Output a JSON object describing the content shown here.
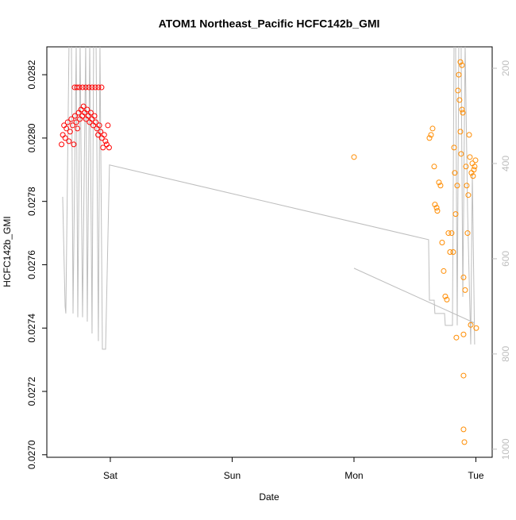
{
  "chart_data": {
    "type": "scatter",
    "title": "ATOM1 Northeast_Pacific HCFC142b_GMI",
    "xlabel": "Date",
    "ylabel": "HCFC142b_GMI",
    "xlim": [
      -0.521,
      3.134
    ],
    "xticks": [
      {
        "value": 0,
        "label": "Sat"
      },
      {
        "value": 1,
        "label": "Sun"
      },
      {
        "value": 2,
        "label": "Mon"
      },
      {
        "value": 3,
        "label": "Tue"
      }
    ],
    "ylim": [
      0.026992,
      0.028288
    ],
    "yticks": [
      {
        "value": 0.027,
        "label": "0.0270"
      },
      {
        "value": 0.0272,
        "label": "0.0272"
      },
      {
        "value": 0.0274,
        "label": "0.0274"
      },
      {
        "value": 0.0276,
        "label": "0.0276"
      },
      {
        "value": 0.0278,
        "label": "0.0278"
      },
      {
        "value": 0.028,
        "label": "0.0280"
      },
      {
        "value": 0.0282,
        "label": "0.0282"
      }
    ],
    "y2lim": [
      1017,
      155
    ],
    "y2ticks": [
      200,
      400,
      600,
      800,
      1000
    ],
    "series": [
      {
        "style": "line",
        "axis": "y2",
        "color": "#bebebe",
        "x": [
          -0.391,
          -0.371,
          -0.365,
          -0.339,
          -0.319,
          -0.306,
          -0.28,
          -0.267,
          -0.248,
          -0.228,
          -0.202,
          -0.189,
          -0.169,
          -0.15,
          -0.137,
          -0.117,
          -0.098,
          -0.085,
          -0.065,
          -0.039,
          -0.007,
          2.612,
          2.619,
          2.658,
          2.664,
          2.743,
          2.749,
          2.808,
          2.821,
          2.834,
          2.847,
          2.86,
          2.879,
          2.893,
          2.912,
          2.932,
          2.945,
          2.958,
          2.971,
          2.99,
          null,
          2.0,
          2.99
        ],
        "values": [
          470,
          700,
          715,
          150,
          150,
          715,
          150,
          723,
          150,
          723,
          150,
          732,
          150,
          757,
          150,
          150,
          773,
          150,
          790,
          790,
          403,
          560,
          687,
          687,
          715,
          715,
          740,
          740,
          150,
          150,
          740,
          150,
          150,
          680,
          150,
          500,
          640,
          780,
          420,
          780,
          null,
          620,
          735
        ]
      },
      {
        "style": "points",
        "color": "#ff0000",
        "x": [
          -0.4,
          -0.39,
          -0.38,
          -0.37,
          -0.36,
          -0.35,
          -0.34,
          -0.33,
          -0.32,
          -0.31,
          -0.3,
          -0.29,
          -0.28,
          -0.27,
          -0.26,
          -0.25,
          -0.24,
          -0.23,
          -0.22,
          -0.21,
          -0.2,
          -0.19,
          -0.18,
          -0.17,
          -0.16,
          -0.15,
          -0.14,
          -0.13,
          -0.12,
          -0.11,
          -0.1,
          -0.09,
          -0.08,
          -0.07,
          -0.06,
          -0.05,
          -0.04,
          -0.03,
          -0.02,
          -0.01,
          -0.293,
          -0.274,
          -0.254,
          -0.228,
          -0.202,
          -0.176,
          -0.15,
          -0.124,
          -0.098,
          -0.072
        ],
        "values": [
          0.02798,
          0.02801,
          0.02804,
          0.028,
          0.02803,
          0.02805,
          0.02799,
          0.02802,
          0.02806,
          0.02804,
          0.02798,
          0.02807,
          0.02805,
          0.02803,
          0.02808,
          0.02806,
          0.02809,
          0.02807,
          0.0281,
          0.02808,
          0.02806,
          0.02809,
          0.02807,
          0.02805,
          0.02808,
          0.02806,
          0.02804,
          0.02807,
          0.02805,
          0.02803,
          0.02801,
          0.02804,
          0.02802,
          0.028,
          0.02797,
          0.02801,
          0.02799,
          0.02798,
          0.02804,
          0.02797,
          0.02816,
          0.02816,
          0.02816,
          0.02816,
          0.02816,
          0.02816,
          0.02816,
          0.02816,
          0.02816,
          0.02816
        ]
      },
      {
        "style": "points",
        "color": "#ff8c00",
        "x": [
          2.0,
          2.619,
          2.632,
          2.645,
          2.658,
          2.664,
          2.678,
          2.684,
          2.697,
          2.71,
          2.723,
          2.736,
          2.749,
          2.762,
          2.775,
          2.788,
          2.801,
          2.814,
          2.821,
          2.827,
          2.834,
          2.84,
          2.847,
          2.853,
          2.86,
          2.866,
          2.873,
          2.873,
          2.879,
          2.886,
          2.886,
          2.893,
          2.899,
          2.899,
          2.899,
          2.899,
          2.906,
          2.912,
          2.919,
          2.925,
          2.932,
          2.938,
          2.945,
          2.951,
          2.958,
          2.964,
          2.971,
          2.977,
          2.984,
          2.99,
          2.997,
          3.003
        ],
        "values": [
          0.02794,
          0.028,
          0.02801,
          0.02803,
          0.02791,
          0.02779,
          0.02778,
          0.02777,
          0.02786,
          0.02785,
          0.02767,
          0.02758,
          0.0275,
          0.02749,
          0.0277,
          0.02764,
          0.0277,
          0.02764,
          0.02797,
          0.02789,
          0.02776,
          0.02737,
          0.02785,
          0.02815,
          0.0282,
          0.02812,
          0.02824,
          0.02802,
          0.02795,
          0.02809,
          0.02823,
          0.02808,
          0.02756,
          0.02738,
          0.02725,
          0.02708,
          0.02704,
          0.02752,
          0.02791,
          0.02785,
          0.0277,
          0.02782,
          0.02801,
          0.02794,
          0.02741,
          0.02789,
          0.02792,
          0.02788,
          0.0279,
          0.02791,
          0.02793,
          0.0274
        ]
      }
    ]
  }
}
